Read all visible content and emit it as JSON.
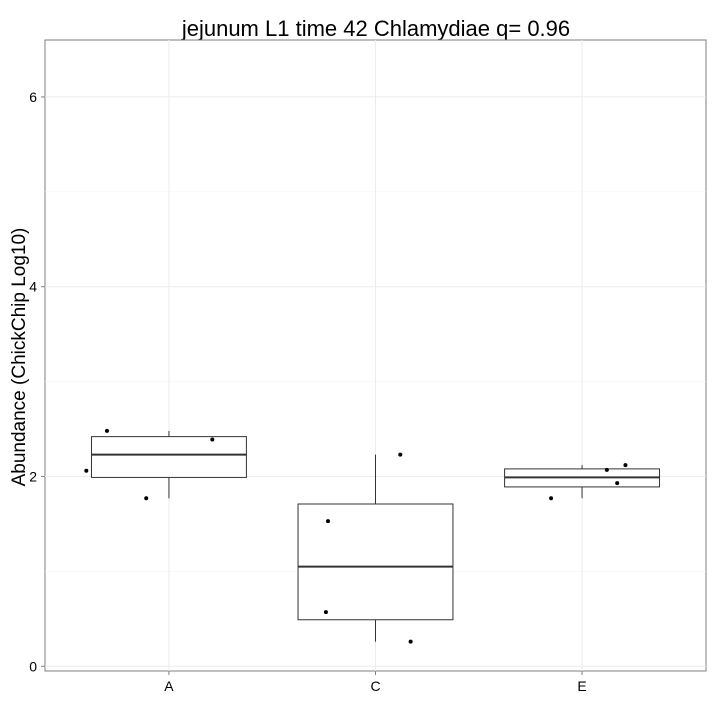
{
  "chart_data": {
    "type": "box",
    "title": "jejunum L1 time 42 Chlamydiae q= 0.96",
    "xlabel": "",
    "ylabel": "Abundance (ChickChip Log10)",
    "ylim": [
      -0.05,
      6.6
    ],
    "yticks": [
      0,
      2,
      4,
      6
    ],
    "grid": true,
    "categories": [
      "A",
      "C",
      "E"
    ],
    "boxes": [
      {
        "category": "A",
        "whisker_low": 1.77,
        "q1": 1.99,
        "median": 2.23,
        "q3": 2.42,
        "whisker_high": 2.48
      },
      {
        "category": "C",
        "whisker_low": 0.26,
        "q1": 0.49,
        "median": 1.05,
        "q3": 1.71,
        "whisker_high": 2.23
      },
      {
        "category": "E",
        "whisker_low": 1.77,
        "q1": 1.89,
        "median": 1.99,
        "q3": 2.08,
        "whisker_high": 2.12
      }
    ],
    "points": [
      {
        "category": "A",
        "jitter": -0.4,
        "y": 2.06
      },
      {
        "category": "A",
        "jitter": -0.3,
        "y": 2.48
      },
      {
        "category": "A",
        "jitter": -0.11,
        "y": 1.77
      },
      {
        "category": "A",
        "jitter": 0.21,
        "y": 2.39
      },
      {
        "category": "C",
        "jitter": -0.23,
        "y": 1.53
      },
      {
        "category": "C",
        "jitter": -0.24,
        "y": 0.57
      },
      {
        "category": "C",
        "jitter": 0.12,
        "y": 2.23
      },
      {
        "category": "C",
        "jitter": 0.17,
        "y": 0.26
      },
      {
        "category": "E",
        "jitter": -0.15,
        "y": 1.77
      },
      {
        "category": "E",
        "jitter": 0.12,
        "y": 2.07
      },
      {
        "category": "E",
        "jitter": 0.17,
        "y": 1.93
      },
      {
        "category": "E",
        "jitter": 0.21,
        "y": 2.12
      }
    ]
  }
}
